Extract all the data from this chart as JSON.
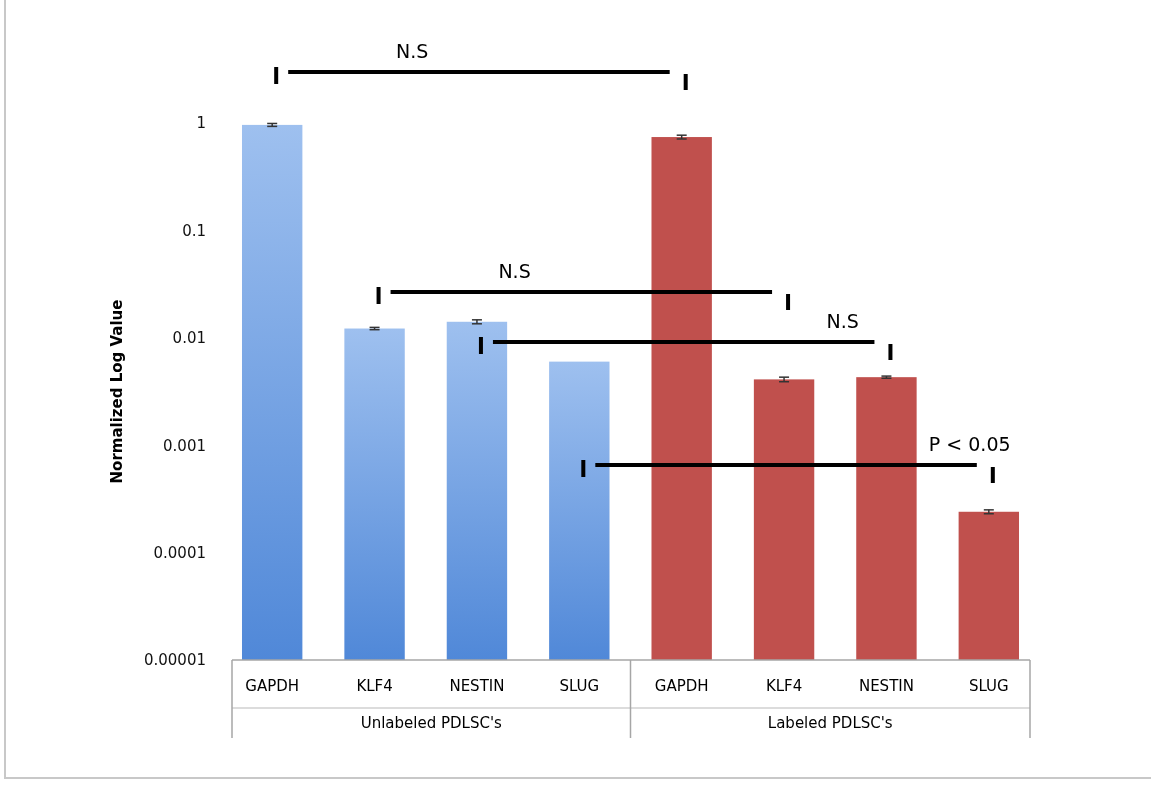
{
  "chart_data": {
    "type": "bar",
    "ylabel": "Normalized Log Value",
    "categories": [
      "GAPDH",
      "KLF4",
      "NESTIN",
      "SLUG",
      "GAPDH",
      "KLF4",
      "NESTIN",
      "SLUG"
    ],
    "values": [
      0.96,
      0.0122,
      0.0141,
      0.006,
      0.74,
      0.0041,
      0.0043,
      0.00024
    ],
    "errors": [
      0.03,
      0.0003,
      0.0006,
      null,
      0.03,
      0.0002,
      0.0001,
      1e-05
    ],
    "colors": [
      "#6a9ee6",
      "#6a9ee6",
      "#6a9ee6",
      "#6a9ee6",
      "#c0504d",
      "#c0504d",
      "#c0504d",
      "#c0504d"
    ],
    "log": true,
    "ylim": [
      1e-05,
      1
    ],
    "yticks": [
      1,
      0.1,
      0.01,
      0.001,
      0.0001,
      {
        "value": 1e-05,
        "label": "0.00001"
      }
    ],
    "grid": false,
    "annotations": [
      "Unlabeled PDLSC's",
      "Labeled PDLSC's",
      "N.S",
      "N.S",
      "N.S",
      "P < 0.05"
    ]
  }
}
